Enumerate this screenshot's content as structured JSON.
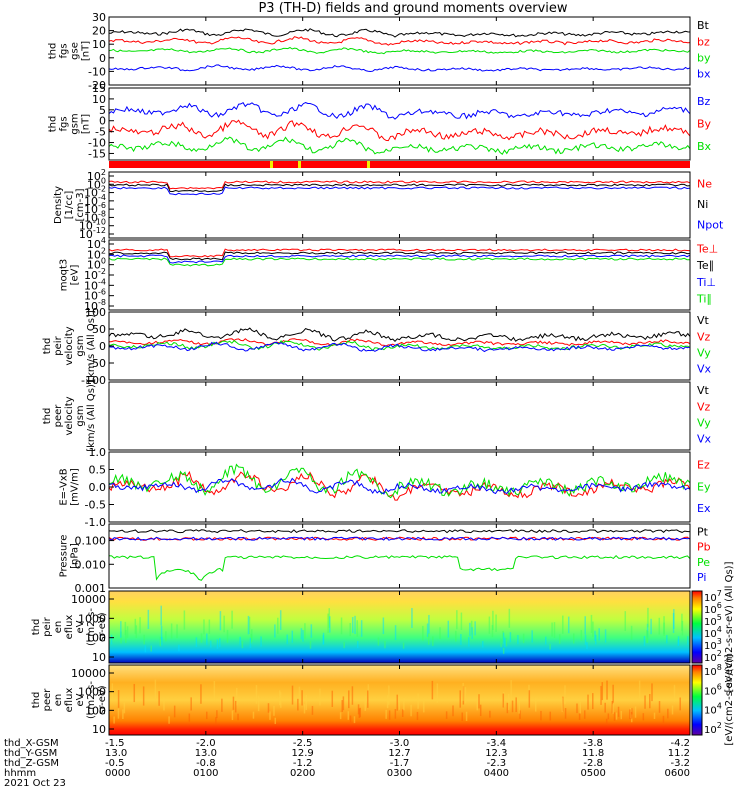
{
  "title": "P3 (TH-D) fields and ground moments overview",
  "colors": {
    "black": "#000000",
    "red": "#ff0000",
    "green": "#00e000",
    "blue": "#0000ff",
    "yellow": "#f0f000"
  },
  "chart_data": [
    {
      "type": "line",
      "panel": "fgs_gse",
      "ylabel_lines": [
        "thd",
        "fgs",
        "gse",
        "[nT]"
      ],
      "ylim": [
        -20,
        30
      ],
      "yticks": [
        "30",
        "20",
        "10",
        "0",
        "-10",
        "-20"
      ],
      "series": [
        {
          "name": "Bt",
          "color": "#000000",
          "level": 18,
          "amp": 4
        },
        {
          "name": "bz",
          "color": "#ff0000",
          "level": 12,
          "amp": 4
        },
        {
          "name": "by",
          "color": "#00e000",
          "level": 5,
          "amp": 3
        },
        {
          "name": "bx",
          "color": "#0000ff",
          "level": -8,
          "amp": 3
        }
      ]
    },
    {
      "type": "line",
      "panel": "fgs_gsm",
      "ylabel_lines": [
        "thd",
        "fgs",
        "gsm",
        "[nT]"
      ],
      "ylim": [
        -18,
        15
      ],
      "yticks": [
        "15",
        "10",
        "5",
        "0",
        "-5",
        "-10",
        "-15"
      ],
      "series": [
        {
          "name": "Bz",
          "color": "#0000ff",
          "level": 4,
          "amp": 5
        },
        {
          "name": "By",
          "color": "#ff0000",
          "level": -5,
          "amp": 6
        },
        {
          "name": "Bx",
          "color": "#00e000",
          "level": -12,
          "amp": 5
        }
      ]
    },
    {
      "type": "bar",
      "panel": "flag_bar",
      "description_color": "#ff0000"
    },
    {
      "type": "line",
      "panel": "density",
      "ylabel_lines": [
        "Density",
        "[1/cc]",
        "[cm-3]"
      ],
      "ytick_exponents": [
        "2",
        "0",
        "-2",
        "-4",
        "-6",
        "-8",
        "-10",
        "-12"
      ],
      "series": [
        {
          "name": "Ne",
          "color": "#ff0000"
        },
        {
          "name": "Ni",
          "color": "#000000"
        },
        {
          "name": "Npot",
          "color": "#0000ff"
        }
      ]
    },
    {
      "type": "line",
      "panel": "temperature",
      "ylabel_lines": [
        "moqt3",
        "[eV]"
      ],
      "ytick_exponents": [
        "4",
        "2",
        "0",
        "-2",
        "-4",
        "-6",
        "-8"
      ],
      "series": [
        {
          "name": "Te⊥",
          "color": "#ff0000"
        },
        {
          "name": "Te∥",
          "color": "#000000"
        },
        {
          "name": "Ti⊥",
          "color": "#0000ff"
        },
        {
          "name": "Ti∥",
          "color": "#00e000"
        }
      ]
    },
    {
      "type": "line",
      "panel": "peir_velocity",
      "ylabel_lines": [
        "thd",
        "peir",
        "velocity",
        "gsm",
        "[km/s (All Qs)]"
      ],
      "ylim": [
        -100,
        100
      ],
      "yticks": [
        "100",
        "50",
        "0",
        "-50",
        "-100"
      ],
      "series": [
        {
          "name": "Vt",
          "color": "#000000",
          "level": 30,
          "amp": 25
        },
        {
          "name": "Vz",
          "color": "#ff0000",
          "level": 10,
          "amp": 15
        },
        {
          "name": "Vy",
          "color": "#00e000",
          "level": 0,
          "amp": 20
        },
        {
          "name": "Vx",
          "color": "#0000ff",
          "level": -5,
          "amp": 18
        }
      ]
    },
    {
      "type": "line",
      "panel": "peer_velocity",
      "ylabel_lines": [
        "thd",
        "peer",
        "velocity",
        "gsm",
        "[km/s (All Qs)]"
      ],
      "series": [
        {
          "name": "Vt",
          "color": "#000000"
        },
        {
          "name": "Vz",
          "color": "#ff0000"
        },
        {
          "name": "Vy",
          "color": "#00e000"
        },
        {
          "name": "Vx",
          "color": "#0000ff"
        }
      ]
    },
    {
      "type": "line",
      "panel": "e_field",
      "ylabel_lines": [
        "E=-VxB",
        "[mV/m]"
      ],
      "ylim": [
        -1.0,
        1.0
      ],
      "yticks": [
        "1.0",
        "0.5",
        "0.0",
        "-0.5",
        "-1.0"
      ],
      "series": [
        {
          "name": "Ez",
          "color": "#ff0000",
          "level": 0.0,
          "amp": 0.5
        },
        {
          "name": "Ey",
          "color": "#00e000",
          "level": 0.1,
          "amp": 0.6
        },
        {
          "name": "Ex",
          "color": "#0000ff",
          "level": 0.0,
          "amp": 0.3
        }
      ]
    },
    {
      "type": "line",
      "panel": "pressure",
      "ylabel_lines": [
        "Pressure",
        "[nPa]"
      ],
      "yscale": "log",
      "yticks": [
        "0.100",
        "0.010",
        "0.001"
      ],
      "series": [
        {
          "name": "Pt",
          "color": "#000000",
          "level": 0.25
        },
        {
          "name": "Pb",
          "color": "#ff0000",
          "level": 0.12
        },
        {
          "name": "Pe",
          "color": "#00e000",
          "level": 0.02
        },
        {
          "name": "Pi",
          "color": "#0000ff",
          "level": 0.12
        }
      ]
    },
    {
      "type": "heatmap",
      "panel": "peir_spectrogram",
      "ylabel_lines": [
        "thd",
        "peir",
        "en",
        "eflux",
        "eV",
        "(cm2-s-",
        "sr-eV)"
      ],
      "yscale": "log",
      "yticks": [
        "10000",
        "1000",
        "100",
        "10"
      ],
      "colorbar_exponents": [
        "7",
        "6",
        "5",
        "4",
        "3",
        "2"
      ],
      "colorbar_label": "[eV/(cm2-s-sr-eV) (All Qs)]"
    },
    {
      "type": "heatmap",
      "panel": "peer_spectrogram",
      "ylabel_lines": [
        "thd",
        "peer",
        "en",
        "eflux",
        "eV",
        "(cm2-s-",
        "sr-eV)"
      ],
      "yscale": "log",
      "yticks": [
        "10000",
        "1000",
        "100",
        "10"
      ],
      "colorbar_exponents": [
        "8",
        "6",
        "4",
        "2"
      ],
      "colorbar_label": "[eV/(cm2-s-sr-eV)]"
    }
  ],
  "x_axis": {
    "rows": [
      {
        "label": "thd_X-GSM",
        "values": [
          "-1.5",
          "-2.0",
          "-2.5",
          "-3.0",
          "-3.4",
          "-3.8",
          "-4.2"
        ]
      },
      {
        "label": "thd_Y-GSM",
        "values": [
          "13.0",
          "13.0",
          "12.9",
          "12.7",
          "12.3",
          "11.8",
          "11.2"
        ]
      },
      {
        "label": "thd_Z-GSM",
        "values": [
          "-0.5",
          "-0.8",
          "-1.2",
          "-1.7",
          "-2.3",
          "-2.8",
          "-3.2"
        ]
      },
      {
        "label": "hhmm",
        "values": [
          "0000",
          "0100",
          "0200",
          "0300",
          "0400",
          "0500",
          "0600"
        ]
      }
    ],
    "date": "2021 Oct 23"
  }
}
